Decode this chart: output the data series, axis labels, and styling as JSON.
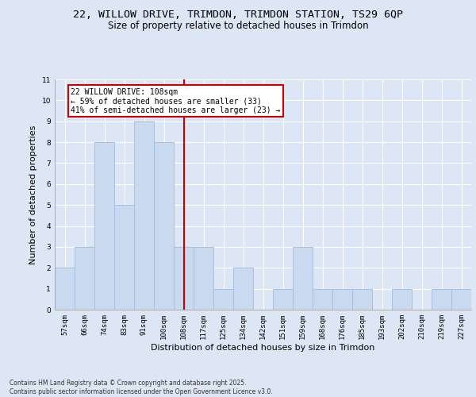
{
  "title_line1": "22, WILLOW DRIVE, TRIMDON, TRIMDON STATION, TS29 6QP",
  "title_line2": "Size of property relative to detached houses in Trimdon",
  "xlabel": "Distribution of detached houses by size in Trimdon",
  "ylabel": "Number of detached properties",
  "categories": [
    "57sqm",
    "66sqm",
    "74sqm",
    "83sqm",
    "91sqm",
    "100sqm",
    "108sqm",
    "117sqm",
    "125sqm",
    "134sqm",
    "142sqm",
    "151sqm",
    "159sqm",
    "168sqm",
    "176sqm",
    "185sqm",
    "193sqm",
    "202sqm",
    "210sqm",
    "219sqm",
    "227sqm"
  ],
  "values": [
    2,
    3,
    8,
    5,
    9,
    8,
    3,
    3,
    1,
    2,
    0,
    1,
    3,
    1,
    1,
    1,
    0,
    1,
    0,
    1,
    1
  ],
  "highlight_index": 6,
  "bar_color": "#c9daf0",
  "bar_edgecolor": "#a8c0e0",
  "highlight_line_color": "#cc0000",
  "annotation_box_color": "#cc0000",
  "annotation_text": "22 WILLOW DRIVE: 108sqm\n← 59% of detached houses are smaller (33)\n41% of semi-detached houses are larger (23) →",
  "ylim": [
    0,
    11
  ],
  "yticks": [
    0,
    1,
    2,
    3,
    4,
    5,
    6,
    7,
    8,
    9,
    10,
    11
  ],
  "footnote": "Contains HM Land Registry data © Crown copyright and database right 2025.\nContains public sector information licensed under the Open Government Licence v3.0.",
  "fig_bg_color": "#dce6f5",
  "plot_bg_color": "#dce6f5",
  "title_fontsize": 9.5,
  "subtitle_fontsize": 8.5,
  "tick_fontsize": 6.5,
  "label_fontsize": 8.0,
  "annot_fontsize": 7.0,
  "footnote_fontsize": 5.5
}
